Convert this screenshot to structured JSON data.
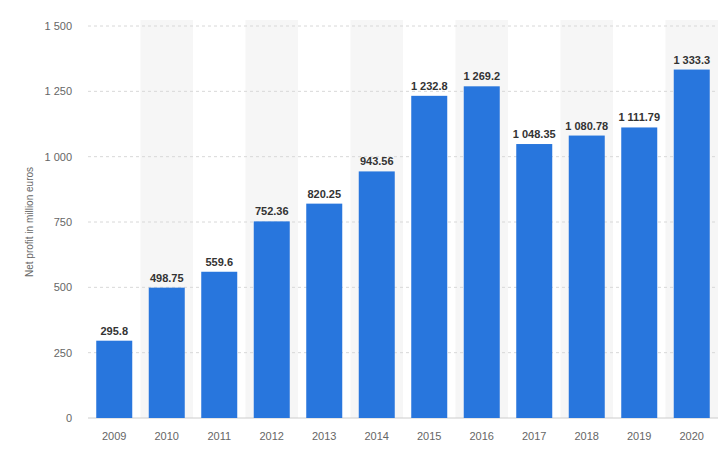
{
  "chart_data": {
    "type": "bar",
    "y_label": "Net profit in million euros",
    "categories": [
      "2009",
      "2010",
      "2011",
      "2012",
      "2013",
      "2014",
      "2015",
      "2016",
      "2017",
      "2018",
      "2019",
      "2020"
    ],
    "values": [
      295.8,
      498.75,
      559.6,
      752.36,
      820.25,
      943.56,
      1232.8,
      1269.2,
      1048.35,
      1080.78,
      1111.79,
      1333.3
    ],
    "value_labels": [
      "295.8",
      "498.75",
      "559.6",
      "752.36",
      "820.25",
      "943.56",
      "1 232.8",
      "1 269.2",
      "1 048.35",
      "1 080.78",
      "1 111.79",
      "1 333.3"
    ],
    "color": "#2876dd",
    "ylim": [
      0,
      1500
    ],
    "yticks": [
      0,
      250,
      500,
      750,
      {
        "value": 1000,
        "label": "1 000"
      },
      {
        "value": 1250,
        "label": "1 250"
      },
      {
        "value": 1500,
        "label": "1 500"
      }
    ],
    "grid": true,
    "data_labels": true
  }
}
